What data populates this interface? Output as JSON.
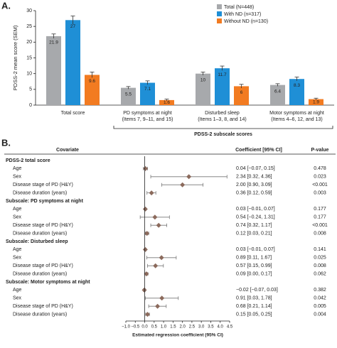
{
  "chart_data": [
    {
      "type": "bar",
      "panel_label": "A.",
      "ylabel": "PDSS-2 mean score (SEM)",
      "categories": [
        [
          "Total score"
        ],
        [
          "PD symptoms at night",
          "(Items 7, 9–11, and 15)"
        ],
        [
          "Disturbed sleep",
          "(Items 1–3, 8, and 14)"
        ],
        [
          "Motor symptoms at night",
          "(Items 4–6, 12, and 13)"
        ]
      ],
      "series": [
        {
          "name": "Total (N=448)",
          "color": "#a7a9ac",
          "values": [
            21.9,
            5.5,
            10,
            6.4
          ],
          "errors": [
            0.7,
            0.4,
            0.5,
            0.4
          ]
        },
        {
          "name": "With ND (n=317)",
          "color": "#1f8fd6",
          "values": [
            27,
            7.1,
            11.7,
            8.3
          ],
          "errors": [
            1.3,
            0.6,
            0.7,
            0.6
          ]
        },
        {
          "name": "Without ND (n=130)",
          "color": "#f27b21",
          "values": [
            9.6,
            1.6,
            6,
            1.9
          ],
          "errors": [
            0.9,
            0.3,
            0.6,
            0.3
          ]
        }
      ],
      "ylim": [
        0,
        30
      ],
      "yticks": [
        0,
        5,
        10,
        15,
        20,
        25,
        30
      ],
      "legend": "upper right",
      "bracket_label": "PDSS-2 subscale scores"
    },
    {
      "type": "forest",
      "panel_label": "B.",
      "columns": [
        "Covariate",
        "Coefficient [95% CI]",
        "P-value"
      ],
      "groups": [
        {
          "name": "PDSS-2 total score",
          "rows": [
            {
              "covariate": "Age",
              "estimate": 0.04,
              "lower": -0.07,
              "upper": 0.15,
              "value_label": "0.04 [−0.07, 0.15]",
              "p_value": "0.478"
            },
            {
              "covariate": "Sex",
              "estimate": 2.34,
              "lower": 0.32,
              "upper": 4.36,
              "value_label": "2.34 [0.32, 4.36]",
              "p_value": "0.023"
            },
            {
              "covariate": "Disease stage of PD (H&Y)",
              "estimate": 2.0,
              "lower": 0.9,
              "upper": 3.09,
              "value_label": "2.00 [0.90, 3.09]",
              "p_value": "<0.001"
            },
            {
              "covariate": "Disease duration (years)",
              "estimate": 0.36,
              "lower": 0.12,
              "upper": 0.59,
              "value_label": "0.36 [0.12, 0.59]",
              "p_value": "0.003"
            }
          ]
        },
        {
          "name": "Subscale: PD symptoms at night",
          "rows": [
            {
              "covariate": "Age",
              "estimate": 0.03,
              "lower": -0.01,
              "upper": 0.07,
              "value_label": "0.03 [−0.01, 0.07]",
              "p_value": "0.177"
            },
            {
              "covariate": "Sex",
              "estimate": 0.54,
              "lower": -0.24,
              "upper": 1.31,
              "value_label": "0.54 [−0.24, 1.31]",
              "p_value": "0.177"
            },
            {
              "covariate": "Disease stage of PD (H&Y)",
              "estimate": 0.74,
              "lower": 0.32,
              "upper": 1.17,
              "value_label": "0.74 [0.32, 1.17]",
              "p_value": "<0.001"
            },
            {
              "covariate": "Disease duration (years)",
              "estimate": 0.12,
              "lower": 0.03,
              "upper": 0.21,
              "value_label": "0.12 [0.03, 0.21]",
              "p_value": "0.008"
            }
          ]
        },
        {
          "name": "Subscale: Disturbed sleep",
          "rows": [
            {
              "covariate": "Age",
              "estimate": 0.03,
              "lower": -0.01,
              "upper": 0.07,
              "value_label": "0.03 [−0.01, 0.07]",
              "p_value": "0.141"
            },
            {
              "covariate": "Sex",
              "estimate": 0.89,
              "lower": 0.11,
              "upper": 1.67,
              "value_label": "0.89 [0.11, 1.67]",
              "p_value": "0.025"
            },
            {
              "covariate": "Disease stage of PD (H&Y)",
              "estimate": 0.57,
              "lower": 0.15,
              "upper": 0.99,
              "value_label": "0.57 [0.15, 0.99]",
              "p_value": "0.008"
            },
            {
              "covariate": "Disease duration (years)",
              "estimate": 0.09,
              "lower": 0.0,
              "upper": 0.17,
              "value_label": "0.09 [0.00, 0.17]",
              "p_value": "0.062"
            }
          ]
        },
        {
          "name": "Subscale: Motor symptoms at night",
          "rows": [
            {
              "covariate": "Age",
              "estimate": -0.02,
              "lower": -0.07,
              "upper": 0.03,
              "value_label": "−0.02 [−0.07, 0.03]",
              "p_value": "0.382"
            },
            {
              "covariate": "Sex",
              "estimate": 0.91,
              "lower": 0.03,
              "upper": 1.78,
              "value_label": "0.91 [0.03, 1.78]",
              "p_value": "0.042"
            },
            {
              "covariate": "Disease stage of PD (H&Y)",
              "estimate": 0.68,
              "lower": 0.21,
              "upper": 1.14,
              "value_label": "0.68 [0.21, 1.14]",
              "p_value": "0.005"
            },
            {
              "covariate": "Disease duration (years)",
              "estimate": 0.15,
              "lower": 0.05,
              "upper": 0.25,
              "value_label": "0.15 [0.05, 0.25]",
              "p_value": "0.004"
            }
          ]
        }
      ],
      "color": "#8b6a5c",
      "reference_line": 0,
      "xlim": [
        -1.0,
        4.5
      ],
      "xticks": [
        {
          "value": -1.0,
          "label": "−1.0"
        },
        {
          "value": -0.5,
          "label": "−0.5"
        },
        {
          "value": 0,
          "label": "0.0"
        },
        {
          "value": 0.5,
          "label": "0.5"
        },
        {
          "value": 1.0,
          "label": "1.0"
        },
        {
          "value": 1.5,
          "label": "1.5"
        },
        {
          "value": 2.0,
          "label": "2.0"
        },
        {
          "value": 2.5,
          "label": "2.5"
        },
        {
          "value": 3.0,
          "label": "3.0"
        },
        {
          "value": 3.5,
          "label": "3.5"
        },
        {
          "value": 4.0,
          "label": "4.0"
        },
        {
          "value": 4.5,
          "label": "4.5"
        }
      ],
      "xlabel": "Estimated regression coefficient (95% CI)"
    }
  ]
}
